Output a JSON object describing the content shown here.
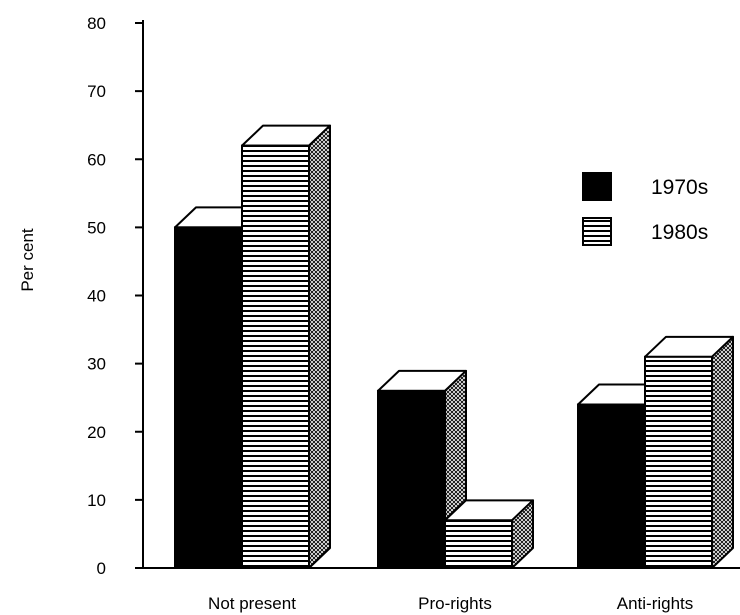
{
  "chart_data": {
    "type": "bar",
    "style": "3d",
    "categories": [
      "Not present",
      "Pro-rights",
      "Anti-rights"
    ],
    "series": [
      {
        "name": "1970s",
        "values": [
          50,
          26,
          24
        ],
        "fill": "solid-black"
      },
      {
        "name": "1980s",
        "values": [
          62,
          7,
          31
        ],
        "fill": "horizontal-stripes"
      }
    ],
    "ylabel": "Per cent",
    "xlabel": "",
    "ylim": [
      0,
      80
    ],
    "yticks": [
      0,
      10,
      20,
      30,
      40,
      50,
      60,
      70,
      80
    ],
    "grid": false,
    "legend_position": "right"
  },
  "colors": {
    "bar_dark": "#000000",
    "background": "#ffffff"
  }
}
